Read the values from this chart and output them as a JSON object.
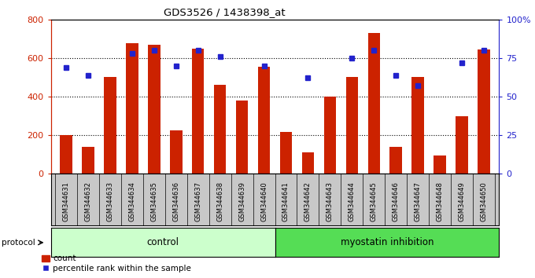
{
  "title": "GDS3526 / 1438398_at",
  "samples": [
    "GSM344631",
    "GSM344632",
    "GSM344633",
    "GSM344634",
    "GSM344635",
    "GSM344636",
    "GSM344637",
    "GSM344638",
    "GSM344639",
    "GSM344640",
    "GSM344641",
    "GSM344642",
    "GSM344643",
    "GSM344644",
    "GSM344645",
    "GSM344646",
    "GSM344647",
    "GSM344648",
    "GSM344649",
    "GSM344650"
  ],
  "counts": [
    200,
    140,
    500,
    675,
    670,
    225,
    650,
    460,
    380,
    555,
    215,
    110,
    400,
    500,
    730,
    140,
    500,
    95,
    300,
    645
  ],
  "percentiles": [
    69,
    64,
    null,
    78,
    80,
    70,
    80,
    76,
    null,
    70,
    null,
    62,
    null,
    75,
    80,
    64,
    57,
    null,
    72,
    80
  ],
  "control_count": 10,
  "bar_color": "#cc2200",
  "dot_color": "#2222cc",
  "left_axis_color": "#cc2200",
  "right_axis_color": "#2222cc",
  "ylim_left": [
    0,
    800
  ],
  "ylim_right": [
    0,
    100
  ],
  "yticks_left": [
    0,
    200,
    400,
    600,
    800
  ],
  "yticks_right": [
    0,
    25,
    50,
    75,
    100
  ],
  "ylabel_right_labels": [
    "0",
    "25",
    "50",
    "75",
    "100%"
  ],
  "grid_yticks": [
    200,
    400,
    600
  ],
  "control_label": "control",
  "treatment_label": "myostatin inhibition",
  "protocol_label": "protocol",
  "legend_count_label": "count",
  "legend_pct_label": "percentile rank within the sample",
  "bg_color": "#ffffff",
  "control_bg": "#ccffcc",
  "treatment_bg": "#55dd55",
  "tick_area_bg": "#c8c8c8"
}
